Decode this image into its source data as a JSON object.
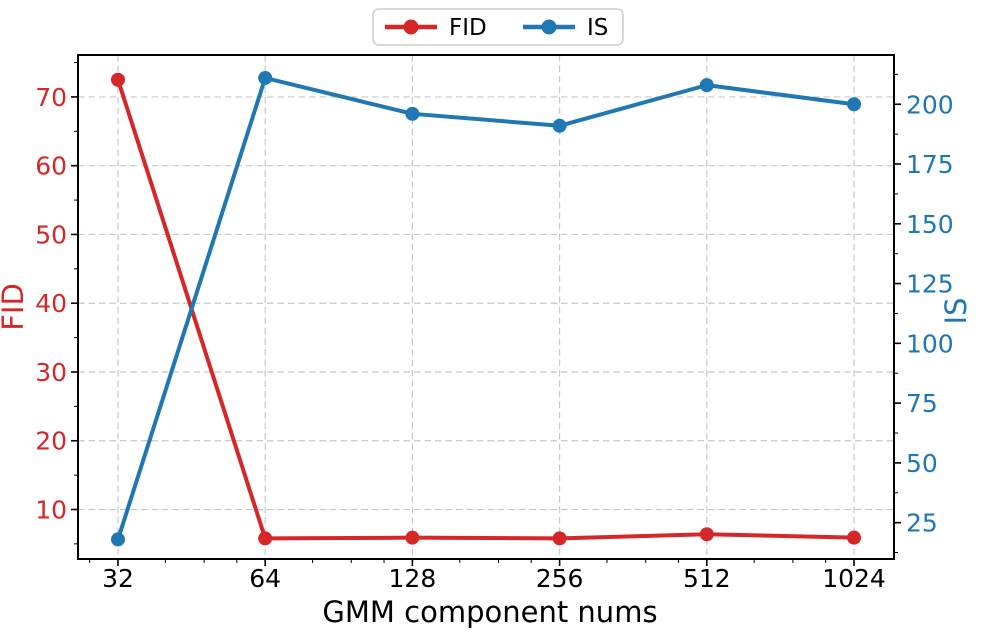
{
  "figure": {
    "background": "#ffffff"
  },
  "chart_data": {
    "type": "line",
    "title": "",
    "xlabel": "GMM component nums",
    "x_scale": "log2",
    "categories": [
      "32",
      "64",
      "128",
      "256",
      "512",
      "1024"
    ],
    "series": [
      {
        "name": "FID",
        "axis": "left",
        "color": "#d62728",
        "marker": "circle",
        "values": [
          72.5,
          5.8,
          5.9,
          5.8,
          6.4,
          5.9
        ]
      },
      {
        "name": "IS",
        "axis": "right",
        "color": "#1f77b4",
        "marker": "circle",
        "values": [
          18,
          211,
          196,
          191,
          208,
          200
        ]
      }
    ],
    "left_axis": {
      "label": "FID",
      "color": "#d62728",
      "range": [
        2.8,
        76.1
      ],
      "ticks": [
        10,
        20,
        30,
        40,
        50,
        60,
        70
      ],
      "minor_interval": 5
    },
    "right_axis": {
      "label": "IS",
      "color": "#1f77b4",
      "range": [
        9.8,
        220.6
      ],
      "ticks": [
        25,
        50,
        75,
        100,
        125,
        150,
        175,
        200
      ],
      "minor_interval": 12.5
    },
    "legend": {
      "position": "top-center-outside",
      "entries": [
        "FID",
        "IS"
      ],
      "border_color": "#cccccc",
      "background": "#ffffff"
    },
    "grid": {
      "show": true,
      "color": "#c8c8c8",
      "style": "dashed"
    },
    "styles": {
      "spine_color": "#000000",
      "x_tick_label_color": "#000000",
      "line_width": 4,
      "marker_radius": 7
    }
  }
}
